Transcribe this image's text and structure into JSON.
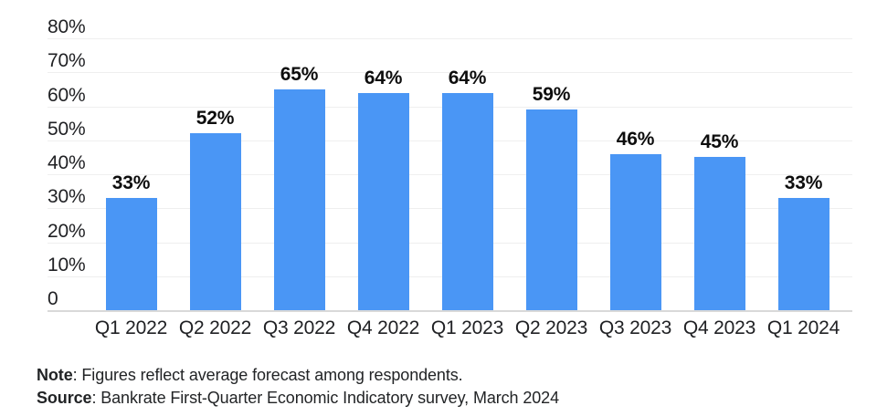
{
  "chart_data": {
    "type": "bar",
    "title": "",
    "categories": [
      "Q1 2022",
      "Q2 2022",
      "Q3 2022",
      "Q4 2022",
      "Q1 2023",
      "Q2 2023",
      "Q3 2023",
      "Q4 2023",
      "Q1 2024"
    ],
    "values": [
      33,
      52,
      65,
      64,
      64,
      59,
      46,
      45,
      33
    ],
    "value_labels": [
      "33%",
      "52%",
      "65%",
      "64%",
      "64%",
      "59%",
      "46%",
      "45%",
      "33%"
    ],
    "xlabel": "",
    "ylabel": "",
    "ylim": [
      0,
      80
    ],
    "yticks": [
      {
        "value": 80,
        "label": "80%"
      },
      {
        "value": 70,
        "label": "70%"
      },
      {
        "value": 60,
        "label": "60%"
      },
      {
        "value": 50,
        "label": "50%"
      },
      {
        "value": 40,
        "label": "40%"
      },
      {
        "value": 30,
        "label": "30%"
      },
      {
        "value": 20,
        "label": "20%"
      },
      {
        "value": 10,
        "label": "10%"
      },
      {
        "value": 0,
        "label": "0"
      }
    ],
    "grid": true,
    "legend": "none",
    "colors": {
      "bar": "#4A96F5",
      "grid": "#efefef",
      "axis_line": "#d9d9d9",
      "label_text": "#202124"
    }
  },
  "footer": {
    "note_label": "Note",
    "note_text": ": Figures reflect average forecast among respondents.",
    "source_label": "Source",
    "source_text": ": Bankrate First-Quarter Economic Indicatory survey, March 2024"
  }
}
